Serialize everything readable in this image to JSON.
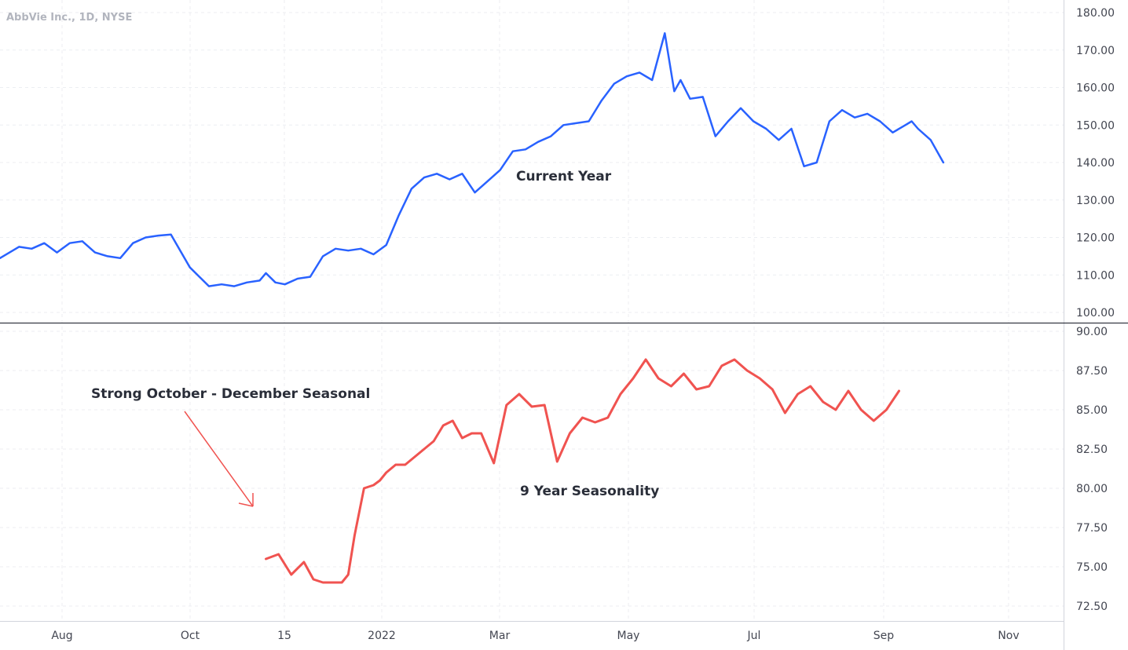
{
  "chart_data": [
    {
      "type": "line",
      "title": "AbbVie Inc., 1D, NYSE",
      "annotation": "Current Year",
      "ylim": [
        97,
        182
      ],
      "yticks": [
        180,
        170,
        160,
        150,
        140,
        130,
        120,
        110,
        100
      ],
      "ytick_labels": [
        "180.00",
        "170.00",
        "160.00",
        "150.00",
        "140.00",
        "130.00",
        "120.00",
        "110.00",
        "100.00"
      ],
      "x_month_axis": "Jul 2021 – Nov 2022",
      "series": [
        {
          "color": "#2962ff",
          "x": [
            0.0,
            0.3,
            0.5,
            0.7,
            0.9,
            1.1,
            1.3,
            1.5,
            1.7,
            1.9,
            2.1,
            2.3,
            2.5,
            2.7,
            3.0,
            3.3,
            3.5,
            3.7,
            3.9,
            4.1,
            4.2,
            4.35,
            4.5,
            4.7,
            4.9,
            5.1,
            5.3,
            5.5,
            5.7,
            5.9,
            6.1,
            6.3,
            6.5,
            6.7,
            6.9,
            7.1,
            7.3,
            7.5,
            7.7,
            7.9,
            8.1,
            8.3,
            8.5,
            8.7,
            8.9,
            9.1,
            9.3,
            9.5,
            9.7,
            9.9,
            10.1,
            10.3,
            10.5,
            10.65,
            10.75,
            10.9,
            11.1,
            11.3,
            11.5,
            11.7,
            11.9,
            12.1,
            12.3,
            12.5,
            12.7,
            12.9,
            13.1,
            13.3,
            13.5,
            13.7,
            13.9,
            14.1,
            14.3,
            14.4,
            14.5,
            14.7,
            14.9
          ],
          "y": [
            114.5,
            117.5,
            117.0,
            118.5,
            116.0,
            118.5,
            119.0,
            116.0,
            115.0,
            114.5,
            118.5,
            120.0,
            120.5,
            120.8,
            112.0,
            107.0,
            107.5,
            107.0,
            108.0,
            108.5,
            110.5,
            108.0,
            107.5,
            109.0,
            109.5,
            115.0,
            117.0,
            116.5,
            117.0,
            115.5,
            118.0,
            126.0,
            133.0,
            136.0,
            137.0,
            135.5,
            137.0,
            132.0,
            135.0,
            138.0,
            143.0,
            143.5,
            145.5,
            147.0,
            150.0,
            150.5,
            151.0,
            156.5,
            161.0,
            163.0,
            164.0,
            162.0,
            174.5,
            159.0,
            162.0,
            157.0,
            157.5,
            147.0,
            151.0,
            154.5,
            151.0,
            149.0,
            146.0,
            149.0,
            139.0,
            140.0,
            151.0,
            154.0,
            152.0,
            153.0,
            151.0,
            148.0,
            150.0,
            151.0,
            149.0,
            146.0,
            140.0
          ]
        }
      ]
    },
    {
      "type": "line",
      "annotation": "9 Year Seasonality",
      "callout": "Strong October - December Seasonal",
      "ylim": [
        71.6,
        90.3
      ],
      "yticks": [
        90,
        87.5,
        85,
        82.5,
        80,
        77.5,
        75,
        72.5
      ],
      "ytick_labels": [
        "90.00",
        "87.50",
        "85.00",
        "82.50",
        "80.00",
        "77.50",
        "75.00",
        "72.50"
      ],
      "xtick_labels": [
        "Aug",
        "Oct",
        "15",
        "2022",
        "Mar",
        "May",
        "Jul",
        "Sep",
        "Nov"
      ],
      "series": [
        {
          "color": "#f05350",
          "x": [
            4.2,
            4.4,
            4.6,
            4.8,
            4.95,
            5.1,
            5.25,
            5.4,
            5.5,
            5.6,
            5.75,
            5.9,
            6.0,
            6.1,
            6.25,
            6.4,
            6.55,
            6.7,
            6.85,
            7.0,
            7.15,
            7.3,
            7.45,
            7.6,
            7.8,
            8.0,
            8.2,
            8.4,
            8.6,
            8.8,
            9.0,
            9.2,
            9.4,
            9.6,
            9.8,
            10.0,
            10.2,
            10.4,
            10.6,
            10.8,
            11.0,
            11.2,
            11.4,
            11.6,
            11.8,
            12.0,
            12.2,
            12.4,
            12.6,
            12.8,
            13.0,
            13.2,
            13.4,
            13.6,
            13.8,
            14.0,
            14.2
          ],
          "y": [
            75.5,
            75.8,
            74.5,
            75.3,
            74.2,
            74.0,
            74.0,
            74.0,
            74.5,
            77.0,
            80.0,
            80.2,
            80.5,
            81.0,
            81.5,
            81.5,
            82.0,
            82.5,
            83.0,
            84.0,
            84.3,
            83.2,
            83.5,
            83.5,
            81.6,
            85.3,
            86.0,
            85.2,
            85.3,
            81.7,
            83.5,
            84.5,
            84.2,
            84.5,
            86.0,
            87.0,
            88.2,
            87.0,
            86.5,
            87.3,
            86.3,
            86.5,
            87.8,
            88.2,
            87.5,
            87.0,
            86.3,
            84.8,
            86.0,
            86.5,
            85.5,
            85.0,
            86.2,
            85.0,
            84.3,
            85.0,
            86.2
          ]
        }
      ]
    }
  ]
}
